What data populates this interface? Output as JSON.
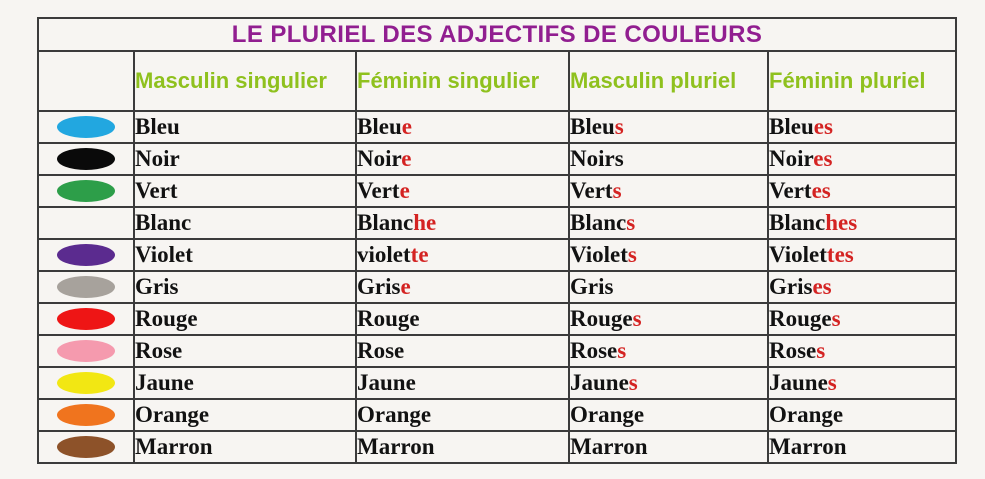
{
  "title": "LE PLURIEL DES ADJECTIFS DE COULEURS",
  "theme": {
    "title_color": "#911e90",
    "header_color": "#8fc11e",
    "ending_red": "#d42322",
    "border_color": "#3b3b3b",
    "background": "#f7f5f2"
  },
  "headers": [
    "",
    "Masculin singulier",
    "Féminin singulier",
    "Masculin pluriel",
    "Féminin pluriel"
  ],
  "rows": [
    {
      "color_name": "bleu",
      "swatch": "#22a7e0",
      "forms": [
        {
          "base": "Bleu",
          "red": ""
        },
        {
          "base": "Bleu",
          "red": "e"
        },
        {
          "base": "Bleu",
          "red": "s"
        },
        {
          "base": "Bleu",
          "red": "es"
        }
      ]
    },
    {
      "color_name": "noir",
      "swatch": "#0a0a0a",
      "forms": [
        {
          "base": "Noir",
          "red": ""
        },
        {
          "base": "Noir",
          "red": "e"
        },
        {
          "base": "Noirs",
          "red": ""
        },
        {
          "base": "Noir",
          "red": "es"
        }
      ]
    },
    {
      "color_name": "vert",
      "swatch": "#2d9e49",
      "forms": [
        {
          "base": "Vert",
          "red": ""
        },
        {
          "base": "Vert",
          "red": "e"
        },
        {
          "base": "Vert",
          "red": "s"
        },
        {
          "base": "Vert",
          "red": "es"
        }
      ]
    },
    {
      "color_name": "blanc",
      "swatch": null,
      "forms": [
        {
          "base": "Blanc",
          "red": ""
        },
        {
          "base": "Blanc",
          "red": "he"
        },
        {
          "base": "Blanc",
          "red": "s"
        },
        {
          "base": "Blanc",
          "red": "hes"
        }
      ]
    },
    {
      "color_name": "violet",
      "swatch": "#5b2b8f",
      "forms": [
        {
          "base": "Violet",
          "red": ""
        },
        {
          "base": "violet",
          "red": "te"
        },
        {
          "base": "Violet",
          "red": "s"
        },
        {
          "base": "Violet",
          "red": "tes"
        }
      ]
    },
    {
      "color_name": "gris",
      "swatch": "#a7a29c",
      "forms": [
        {
          "base": "Gris",
          "red": ""
        },
        {
          "base": "Gris",
          "red": "e"
        },
        {
          "base": "Gris",
          "red": ""
        },
        {
          "base": "Gris",
          "red": "es"
        }
      ]
    },
    {
      "color_name": "rouge",
      "swatch": "#ee1515",
      "forms": [
        {
          "base": "Rouge",
          "red": ""
        },
        {
          "base": "Rouge",
          "red": ""
        },
        {
          "base": "Rouge",
          "red": "s"
        },
        {
          "base": "Rouge",
          "red": "s"
        }
      ]
    },
    {
      "color_name": "rose",
      "swatch": "#f59aae",
      "forms": [
        {
          "base": "Rose",
          "red": ""
        },
        {
          "base": "Rose",
          "red": ""
        },
        {
          "base": "Rose",
          "red": "s"
        },
        {
          "base": "Rose",
          "red": "s"
        }
      ]
    },
    {
      "color_name": "jaune",
      "swatch": "#f2e713",
      "forms": [
        {
          "base": "Jaune",
          "red": ""
        },
        {
          "base": "Jaune",
          "red": ""
        },
        {
          "base": "Jaune",
          "red": "s"
        },
        {
          "base": "Jaune",
          "red": "s"
        }
      ]
    },
    {
      "color_name": "orange",
      "swatch": "#f0741e",
      "forms": [
        {
          "base": "Orange",
          "red": ""
        },
        {
          "base": "Orange",
          "red": ""
        },
        {
          "base": "Orange",
          "red": ""
        },
        {
          "base": "Orange",
          "red": ""
        }
      ]
    },
    {
      "color_name": "marron",
      "swatch": "#8d5229",
      "forms": [
        {
          "base": "Marron",
          "red": ""
        },
        {
          "base": "Marron",
          "red": ""
        },
        {
          "base": "Marron",
          "red": ""
        },
        {
          "base": "Marron",
          "red": ""
        }
      ]
    }
  ]
}
